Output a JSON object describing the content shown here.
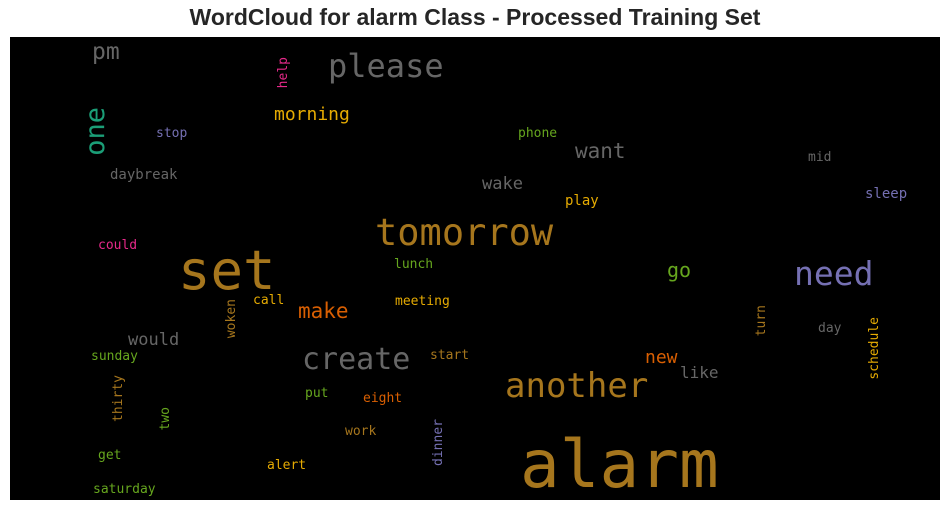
{
  "title": "WordCloud for alarm Class - Processed Training Set",
  "chart_data": {
    "type": "wordcloud",
    "title": "WordCloud for alarm Class - Processed Training Set",
    "background": "#000000",
    "palette": [
      "#1b9e77",
      "#d95f02",
      "#7570b3",
      "#e7298a",
      "#66a61e",
      "#e6ab02",
      "#a6761d",
      "#666666"
    ],
    "words": [
      {
        "text": "alarm",
        "color": "#a6761d"
      },
      {
        "text": "set",
        "color": "#a6761d"
      },
      {
        "text": "tomorrow",
        "color": "#a6761d"
      },
      {
        "text": "another",
        "color": "#a6761d"
      },
      {
        "text": "need",
        "color": "#7570b3"
      },
      {
        "text": "please",
        "color": "#666666"
      },
      {
        "text": "create",
        "color": "#666666"
      },
      {
        "text": "one",
        "color": "#1b9e77"
      },
      {
        "text": "pm",
        "color": "#666666"
      },
      {
        "text": "make",
        "color": "#d95f02"
      },
      {
        "text": "want",
        "color": "#666666"
      },
      {
        "text": "go",
        "color": "#66a61e"
      },
      {
        "text": "morning",
        "color": "#e6ab02"
      },
      {
        "text": "wake",
        "color": "#666666"
      },
      {
        "text": "new",
        "color": "#d95f02"
      },
      {
        "text": "would",
        "color": "#666666"
      },
      {
        "text": "like",
        "color": "#666666"
      },
      {
        "text": "help",
        "color": "#e7298a"
      },
      {
        "text": "stop",
        "color": "#7570b3"
      },
      {
        "text": "phone",
        "color": "#66a61e"
      },
      {
        "text": "mid",
        "color": "#666666"
      },
      {
        "text": "daybreak",
        "color": "#666666"
      },
      {
        "text": "sleep",
        "color": "#7570b3"
      },
      {
        "text": "play",
        "color": "#e6ab02"
      },
      {
        "text": "could",
        "color": "#e7298a"
      },
      {
        "text": "lunch",
        "color": "#66a61e"
      },
      {
        "text": "call",
        "color": "#e6ab02"
      },
      {
        "text": "meeting",
        "color": "#e6ab02"
      },
      {
        "text": "turn",
        "color": "#a6761d"
      },
      {
        "text": "woken",
        "color": "#a6761d"
      },
      {
        "text": "day",
        "color": "#666666"
      },
      {
        "text": "schedule",
        "color": "#e6ab02"
      },
      {
        "text": "sunday",
        "color": "#66a61e"
      },
      {
        "text": "start",
        "color": "#a6761d"
      },
      {
        "text": "thirty",
        "color": "#a6761d"
      },
      {
        "text": "two",
        "color": "#66a61e"
      },
      {
        "text": "put",
        "color": "#66a61e"
      },
      {
        "text": "eight",
        "color": "#d95f02"
      },
      {
        "text": "work",
        "color": "#a6761d"
      },
      {
        "text": "dinner",
        "color": "#7570b3"
      },
      {
        "text": "get",
        "color": "#66a61e"
      },
      {
        "text": "alert",
        "color": "#e6ab02"
      },
      {
        "text": "saturday",
        "color": "#66a61e"
      }
    ]
  }
}
